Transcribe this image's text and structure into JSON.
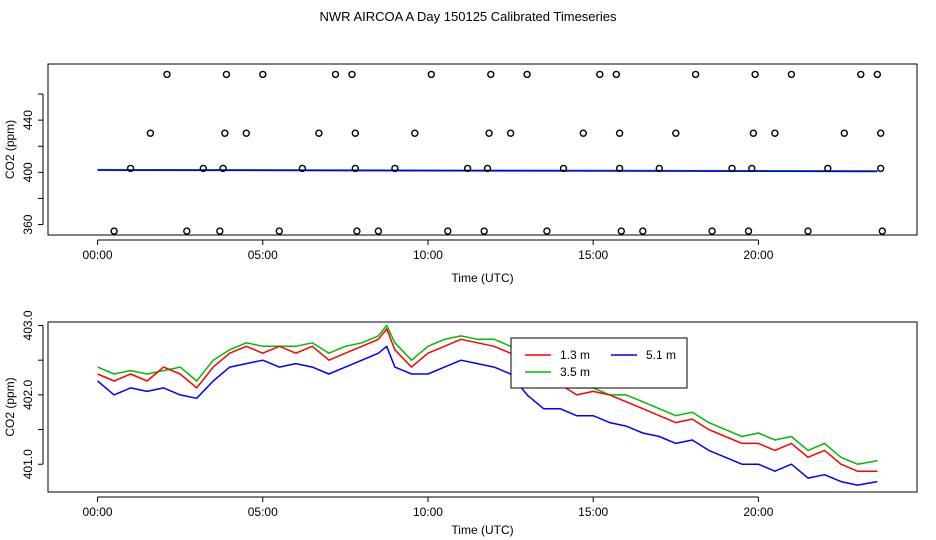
{
  "figure": {
    "title": "NWR AIRCOA A  Day 150125  Calibrated Timeseries"
  },
  "chart_data": [
    {
      "type": "scatter",
      "xlabel": "Time (UTC)",
      "ylabel": "CO2 (ppm)",
      "xlim": [
        -1.5,
        24.8
      ],
      "ylim": [
        352,
        483
      ],
      "xticks": [
        0,
        5,
        10,
        15,
        20
      ],
      "xtick_labels": [
        "00:00",
        "05:00",
        "10:00",
        "15:00",
        "20:00"
      ],
      "yticks": [
        360,
        380,
        400,
        420,
        440,
        460
      ],
      "ytick_labels": [
        "360",
        "",
        "400",
        "",
        "440",
        ""
      ],
      "grid": false,
      "points_series": {
        "name": "calibration",
        "color": "#000000",
        "points": [
          [
            0.5,
            355
          ],
          [
            1.0,
            403
          ],
          [
            1.6,
            430
          ],
          [
            2.1,
            475
          ],
          [
            2.7,
            355
          ],
          [
            3.2,
            403
          ],
          [
            3.7,
            355
          ],
          [
            3.8,
            403
          ],
          [
            3.85,
            430
          ],
          [
            3.9,
            475
          ],
          [
            4.5,
            430
          ],
          [
            5.0,
            475
          ],
          [
            5.5,
            355
          ],
          [
            6.2,
            403
          ],
          [
            6.7,
            430
          ],
          [
            7.2,
            475
          ],
          [
            7.7,
            475
          ],
          [
            7.8,
            430
          ],
          [
            7.8,
            403
          ],
          [
            7.85,
            355
          ],
          [
            8.5,
            355
          ],
          [
            9.0,
            403
          ],
          [
            9.6,
            430
          ],
          [
            10.1,
            475
          ],
          [
            10.6,
            355
          ],
          [
            11.2,
            403
          ],
          [
            11.7,
            355
          ],
          [
            11.8,
            403
          ],
          [
            11.85,
            430
          ],
          [
            11.9,
            475
          ],
          [
            12.5,
            430
          ],
          [
            13.0,
            475
          ],
          [
            13.6,
            355
          ],
          [
            14.1,
            403
          ],
          [
            14.7,
            430
          ],
          [
            15.2,
            475
          ],
          [
            15.7,
            475
          ],
          [
            15.8,
            430
          ],
          [
            15.8,
            403
          ],
          [
            15.85,
            355
          ],
          [
            16.5,
            355
          ],
          [
            17.0,
            403
          ],
          [
            17.5,
            430
          ],
          [
            18.1,
            475
          ],
          [
            18.6,
            355
          ],
          [
            19.2,
            403
          ],
          [
            19.7,
            355
          ],
          [
            19.8,
            403
          ],
          [
            19.85,
            430
          ],
          [
            19.9,
            475
          ],
          [
            20.5,
            430
          ],
          [
            21.0,
            475
          ],
          [
            21.5,
            355
          ],
          [
            22.1,
            403
          ],
          [
            22.6,
            430
          ],
          [
            23.1,
            475
          ],
          [
            23.6,
            475
          ],
          [
            23.7,
            430
          ],
          [
            23.7,
            403
          ],
          [
            23.75,
            355
          ]
        ]
      },
      "series": [
        {
          "name": "1.3 m",
          "color": "#ff0000",
          "x": [
            0,
            23.6
          ],
          "values": [
            401.9,
            400.9
          ]
        },
        {
          "name": "3.5 m",
          "color": "#00bb00",
          "x": [
            0,
            23.6
          ],
          "values": [
            402.0,
            401.0
          ]
        },
        {
          "name": "5.1 m",
          "color": "#0000ff",
          "x": [
            0,
            23.6
          ],
          "values": [
            401.7,
            400.7
          ]
        }
      ]
    },
    {
      "type": "line",
      "xlabel": "Time (UTC)",
      "ylabel": "CO2 (ppm)",
      "xlim": [
        -1.5,
        24.8
      ],
      "ylim": [
        400.6,
        403.05
      ],
      "xticks": [
        0,
        5,
        10,
        15,
        20
      ],
      "xtick_labels": [
        "00:00",
        "05:00",
        "10:00",
        "15:00",
        "20:00"
      ],
      "yticks": [
        401.0,
        401.5,
        402.0,
        402.5,
        403.0
      ],
      "ytick_labels": [
        "401.0",
        "",
        "402.0",
        "",
        "403.0"
      ],
      "grid": false,
      "legend": {
        "placement": "top-right",
        "entries": [
          "1.3 m",
          "5.1 m",
          "3.5 m"
        ]
      },
      "x": [
        0,
        0.5,
        1.0,
        1.5,
        2.0,
        2.5,
        3.0,
        3.5,
        4.0,
        4.5,
        5.0,
        5.5,
        6.0,
        6.5,
        7.0,
        7.5,
        8.0,
        8.5,
        8.75,
        9.0,
        9.5,
        10.0,
        10.5,
        11.0,
        11.5,
        12.0,
        12.5,
        13.0,
        13.5,
        14.0,
        14.5,
        15.0,
        15.5,
        16.0,
        16.5,
        17.0,
        17.5,
        18.0,
        18.5,
        19.0,
        19.5,
        20.0,
        20.5,
        21.0,
        21.5,
        22.0,
        22.5,
        23.0,
        23.6
      ],
      "series": [
        {
          "name": "1.3 m",
          "color": "#ff0000",
          "values": [
            402.3,
            402.2,
            402.3,
            402.2,
            402.4,
            402.3,
            402.1,
            402.4,
            402.6,
            402.7,
            402.6,
            402.7,
            402.6,
            402.7,
            402.5,
            402.6,
            402.7,
            402.8,
            402.95,
            402.65,
            402.4,
            402.6,
            402.7,
            402.8,
            402.75,
            402.7,
            402.6,
            402.3,
            402.1,
            402.15,
            402.0,
            402.05,
            402.0,
            401.9,
            401.8,
            401.7,
            401.6,
            401.65,
            401.5,
            401.4,
            401.3,
            401.3,
            401.2,
            401.3,
            401.1,
            401.2,
            401.0,
            400.9,
            400.9
          ]
        },
        {
          "name": "3.5 m",
          "color": "#00bb00",
          "values": [
            402.4,
            402.3,
            402.35,
            402.3,
            402.35,
            402.4,
            402.2,
            402.5,
            402.65,
            402.75,
            402.7,
            402.7,
            402.7,
            402.75,
            402.6,
            402.7,
            402.75,
            402.85,
            403.0,
            402.75,
            402.5,
            402.7,
            402.8,
            402.85,
            402.8,
            402.8,
            402.7,
            402.4,
            402.2,
            402.2,
            402.1,
            402.1,
            402.0,
            402.0,
            401.9,
            401.8,
            401.7,
            401.75,
            401.6,
            401.5,
            401.4,
            401.45,
            401.35,
            401.4,
            401.2,
            401.3,
            401.1,
            401.0,
            401.05
          ]
        },
        {
          "name": "5.1 m",
          "color": "#0000ff",
          "values": [
            402.2,
            402.0,
            402.1,
            402.05,
            402.1,
            402.0,
            401.95,
            402.2,
            402.4,
            402.45,
            402.5,
            402.4,
            402.45,
            402.4,
            402.3,
            402.4,
            402.5,
            402.6,
            402.7,
            402.4,
            402.3,
            402.3,
            402.4,
            402.5,
            402.45,
            402.4,
            402.3,
            402.0,
            401.8,
            401.8,
            401.7,
            401.7,
            401.6,
            401.55,
            401.45,
            401.4,
            401.3,
            401.35,
            401.2,
            401.1,
            401.0,
            401.0,
            400.9,
            401.0,
            400.8,
            400.85,
            400.75,
            400.7,
            400.75
          ]
        }
      ]
    }
  ]
}
